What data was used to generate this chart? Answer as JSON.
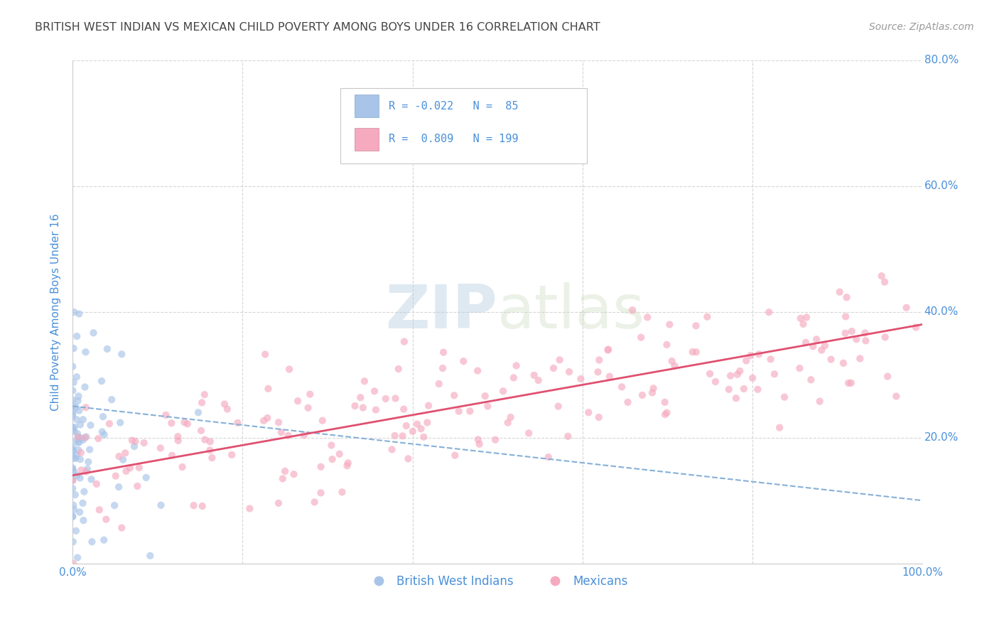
{
  "title": "BRITISH WEST INDIAN VS MEXICAN CHILD POVERTY AMONG BOYS UNDER 16 CORRELATION CHART",
  "source": "Source: ZipAtlas.com",
  "ylabel": "Child Poverty Among Boys Under 16",
  "watermark_zip": "ZIP",
  "watermark_atlas": "atlas",
  "blue_color": "#a8c4e8",
  "pink_color": "#f5aabf",
  "blue_line_color": "#85b0d8",
  "pink_line_color": "#e05070",
  "axis_label_color": "#4a90d9",
  "title_color": "#444444",
  "source_color": "#999999",
  "background_color": "#ffffff",
  "xlim": [
    0.0,
    1.0
  ],
  "ylim": [
    0.0,
    0.8
  ],
  "x_ticks": [
    0.0,
    0.2,
    0.4,
    0.6,
    0.8,
    1.0
  ],
  "x_tick_labels": [
    "0.0%",
    "",
    "",
    "",
    "",
    "100.0%"
  ],
  "y_ticks": [
    0.0,
    0.2,
    0.4,
    0.6,
    0.8
  ],
  "y_tick_labels_right": [
    "",
    "20.0%",
    "40.0%",
    "60.0%",
    "80.0%"
  ],
  "grid_color": "#cccccc",
  "scatter_alpha": 0.65,
  "scatter_size": 55,
  "blue_N": 85,
  "pink_N": 199,
  "blue_line_x0": 0.0,
  "blue_line_y0": 0.25,
  "blue_line_x1": 1.0,
  "blue_line_y1": 0.1,
  "pink_line_x0": 0.0,
  "pink_line_y0": 0.14,
  "pink_line_x1": 1.0,
  "pink_line_y1": 0.38
}
